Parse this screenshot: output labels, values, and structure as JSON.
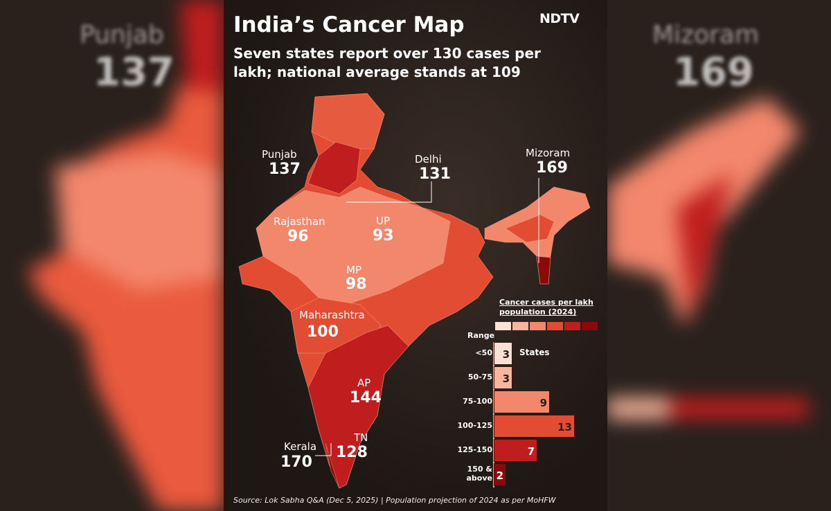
{
  "header": {
    "title": "India’s Cancer Map",
    "subtitle": "Seven states report over 130 cases per lakh; national average stands at 109",
    "logo": "NDTV"
  },
  "map_labels": [
    {
      "state": "Punjab",
      "value": "137"
    },
    {
      "state": "Delhi",
      "value": "131"
    },
    {
      "state": "Mizoram",
      "value": "169"
    },
    {
      "state": "Rajasthan",
      "value": "96"
    },
    {
      "state": "UP",
      "value": "93"
    },
    {
      "state": "MP",
      "value": "98"
    },
    {
      "state": "Maharashtra",
      "value": "100"
    },
    {
      "state": "AP",
      "value": "144"
    },
    {
      "state": "TN",
      "value": "128"
    },
    {
      "state": "Kerala",
      "value": "170"
    }
  ],
  "legend": {
    "title": "Cancer cases per lakh population (2024)",
    "range_header": "Range",
    "unit_label": "States",
    "colors": [
      "#fbe0d6",
      "#f9b59d",
      "#f3876c",
      "#e24c33",
      "#c01e1e",
      "#8a0a0a"
    ],
    "bins": [
      {
        "range": "<50",
        "count": 3
      },
      {
        "range": "50-75",
        "count": 3
      },
      {
        "range": "75-100",
        "count": 9
      },
      {
        "range": "100-125",
        "count": 13
      },
      {
        "range": "125-150",
        "count": 7
      },
      {
        "range": "150 & above",
        "count": 2
      }
    ]
  },
  "side_left": {
    "state": "Punjab",
    "value": "137"
  },
  "side_right": {
    "state": "Mizoram",
    "value": "169"
  },
  "source": "Source: Lok Sabha Q&A (Dec 5, 2025) | Population projection of 2024 as per MoHFW"
}
